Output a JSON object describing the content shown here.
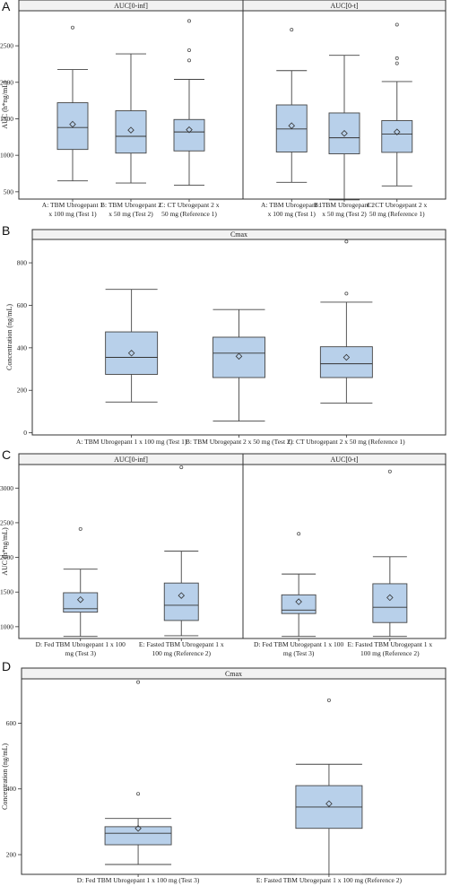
{
  "chart_data": [
    {
      "panel_letter": "A",
      "type": "boxplot",
      "ylabel": "AUC (h*ng/mL)",
      "yticks": [
        500,
        1000,
        1500,
        2000,
        2500
      ],
      "ylim": [
        400,
        2980
      ],
      "facets": [
        {
          "strip": "AUC[0-inf]",
          "categories": [
            [
              "A: TBM Ubrogepant 1",
              "x 100 mg (Test 1)"
            ],
            [
              "B: TBM Ubrogepant 2",
              "x 50 mg (Test 2)"
            ],
            [
              "C: CT Ubrogepant 2 x",
              "50 mg (Reference 1)"
            ]
          ],
          "boxes": [
            {
              "min": 650,
              "q1": 1080,
              "median": 1380,
              "q3": 1720,
              "max": 2175,
              "mean": 1425,
              "outliers": [
                2750
              ]
            },
            {
              "min": 620,
              "q1": 1030,
              "median": 1260,
              "q3": 1610,
              "max": 2390,
              "mean": 1345,
              "outliers": []
            },
            {
              "min": 590,
              "q1": 1060,
              "median": 1320,
              "q3": 1490,
              "max": 2040,
              "mean": 1350,
              "outliers": [
                2300,
                2440,
                2840
              ]
            }
          ]
        },
        {
          "strip": "AUC[0-t]",
          "categories": [
            [
              "A: TBM Ubrogepant 1",
              "x 100 mg (Test 1)"
            ],
            [
              "B: TBM Ubrogepant 2",
              "x 50 mg (Test 2)"
            ],
            [
              "C: CT Ubrogepant 2 x",
              "50 mg (Reference 1)"
            ]
          ],
          "boxes": [
            {
              "min": 630,
              "q1": 1045,
              "median": 1360,
              "q3": 1690,
              "max": 2160,
              "mean": 1405,
              "outliers": [
                2720
              ]
            },
            {
              "min": 390,
              "q1": 1020,
              "median": 1240,
              "q3": 1580,
              "max": 2370,
              "mean": 1300,
              "outliers": []
            },
            {
              "min": 580,
              "q1": 1040,
              "median": 1290,
              "q3": 1475,
              "max": 2010,
              "mean": 1320,
              "outliers": [
                2260,
                2330,
                2790
              ]
            }
          ]
        }
      ]
    },
    {
      "panel_letter": "B",
      "type": "boxplot",
      "ylabel": "Concentration (ng/mL)",
      "yticks": [
        0,
        200,
        400,
        600,
        800
      ],
      "ylim": [
        -10,
        910
      ],
      "facets": [
        {
          "strip": "Cmax",
          "categories": [
            [
              "A: TBM Ubrogepant 1 x 100 mg (Test 1)"
            ],
            [
              "B: TBM Ubrogepant 2 x 50 mg (Test 2)"
            ],
            [
              "C: CT Ubrogepant 2 x 50 mg (Reference 1)"
            ]
          ],
          "boxes": [
            {
              "min": 145,
              "q1": 275,
              "median": 355,
              "q3": 475,
              "max": 675,
              "mean": 375,
              "outliers": []
            },
            {
              "min": 55,
              "q1": 260,
              "median": 375,
              "q3": 450,
              "max": 580,
              "mean": 360,
              "outliers": []
            },
            {
              "min": 140,
              "q1": 260,
              "median": 325,
              "q3": 405,
              "max": 615,
              "mean": 355,
              "outliers": [
                655,
                900
              ]
            }
          ]
        }
      ]
    },
    {
      "panel_letter": "C",
      "type": "boxplot",
      "ylabel": "AUC (h*ng/mL)",
      "yticks": [
        1000,
        1500,
        2000,
        2500,
        3000
      ],
      "ylim": [
        830,
        3340
      ],
      "facets": [
        {
          "strip": "AUC[0-inf]",
          "categories": [
            [
              "D: Fed TBM Ubrogepant 1 x 100",
              "mg (Test 3)"
            ],
            [
              "E: Fasted TBM Ubrogepant 1 x",
              "100 mg (Reference 2)"
            ]
          ],
          "boxes": [
            {
              "min": 860,
              "q1": 1210,
              "median": 1260,
              "q3": 1490,
              "max": 1830,
              "mean": 1390,
              "outliers": [
                2410
              ]
            },
            {
              "min": 870,
              "q1": 1090,
              "median": 1310,
              "q3": 1630,
              "max": 2090,
              "mean": 1450,
              "outliers": [
                3300
              ]
            }
          ]
        },
        {
          "strip": "AUC[0-t]",
          "categories": [
            [
              "D: Fed TBM Ubrogepant 1 x 100",
              "mg (Test 3)"
            ],
            [
              "E: Fasted TBM Ubrogepant 1 x",
              "100 mg (Reference 2)"
            ]
          ],
          "boxes": [
            {
              "min": 860,
              "q1": 1190,
              "median": 1240,
              "q3": 1460,
              "max": 1760,
              "mean": 1360,
              "outliers": [
                2340
              ]
            },
            {
              "min": 860,
              "q1": 1060,
              "median": 1280,
              "q3": 1620,
              "max": 2010,
              "mean": 1420,
              "outliers": [
                3240
              ]
            }
          ]
        }
      ]
    },
    {
      "panel_letter": "D",
      "type": "boxplot",
      "ylabel": "Concentration (ng/mL)",
      "yticks": [
        200,
        400,
        600
      ],
      "ylim": [
        140,
        735
      ],
      "facets": [
        {
          "strip": "Cmax",
          "categories": [
            [
              "D: Fed TBM Ubrogepant 1 x 100 mg (Test 3)"
            ],
            [
              "E: Fasted TBM Ubrogepant 1 x 100 mg (Reference 2)"
            ]
          ],
          "boxes": [
            {
              "min": 170,
              "q1": 230,
              "median": 265,
              "q3": 285,
              "max": 310,
              "mean": 280,
              "outliers": [
                385,
                725
              ]
            },
            {
              "min": 140,
              "q1": 280,
              "median": 345,
              "q3": 410,
              "max": 475,
              "mean": 355,
              "outliers": [
                670
              ]
            }
          ]
        }
      ]
    }
  ]
}
